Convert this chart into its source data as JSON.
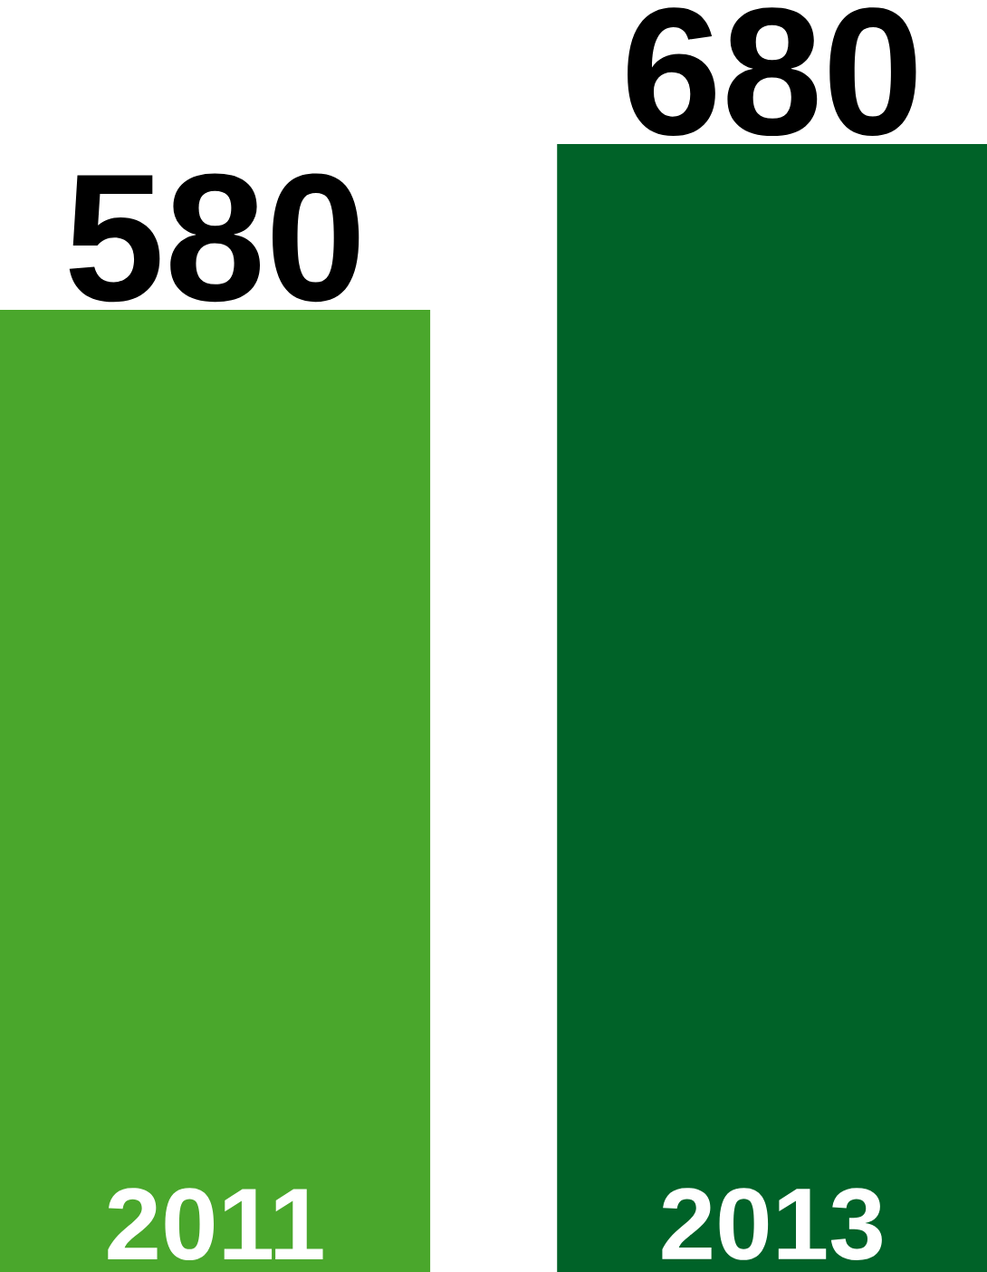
{
  "chart_data": {
    "type": "bar",
    "categories": [
      "2011",
      "2013"
    ],
    "values": [
      580,
      680
    ],
    "colors": [
      "#4aa72c",
      "#006228"
    ],
    "data_labels": true
  }
}
